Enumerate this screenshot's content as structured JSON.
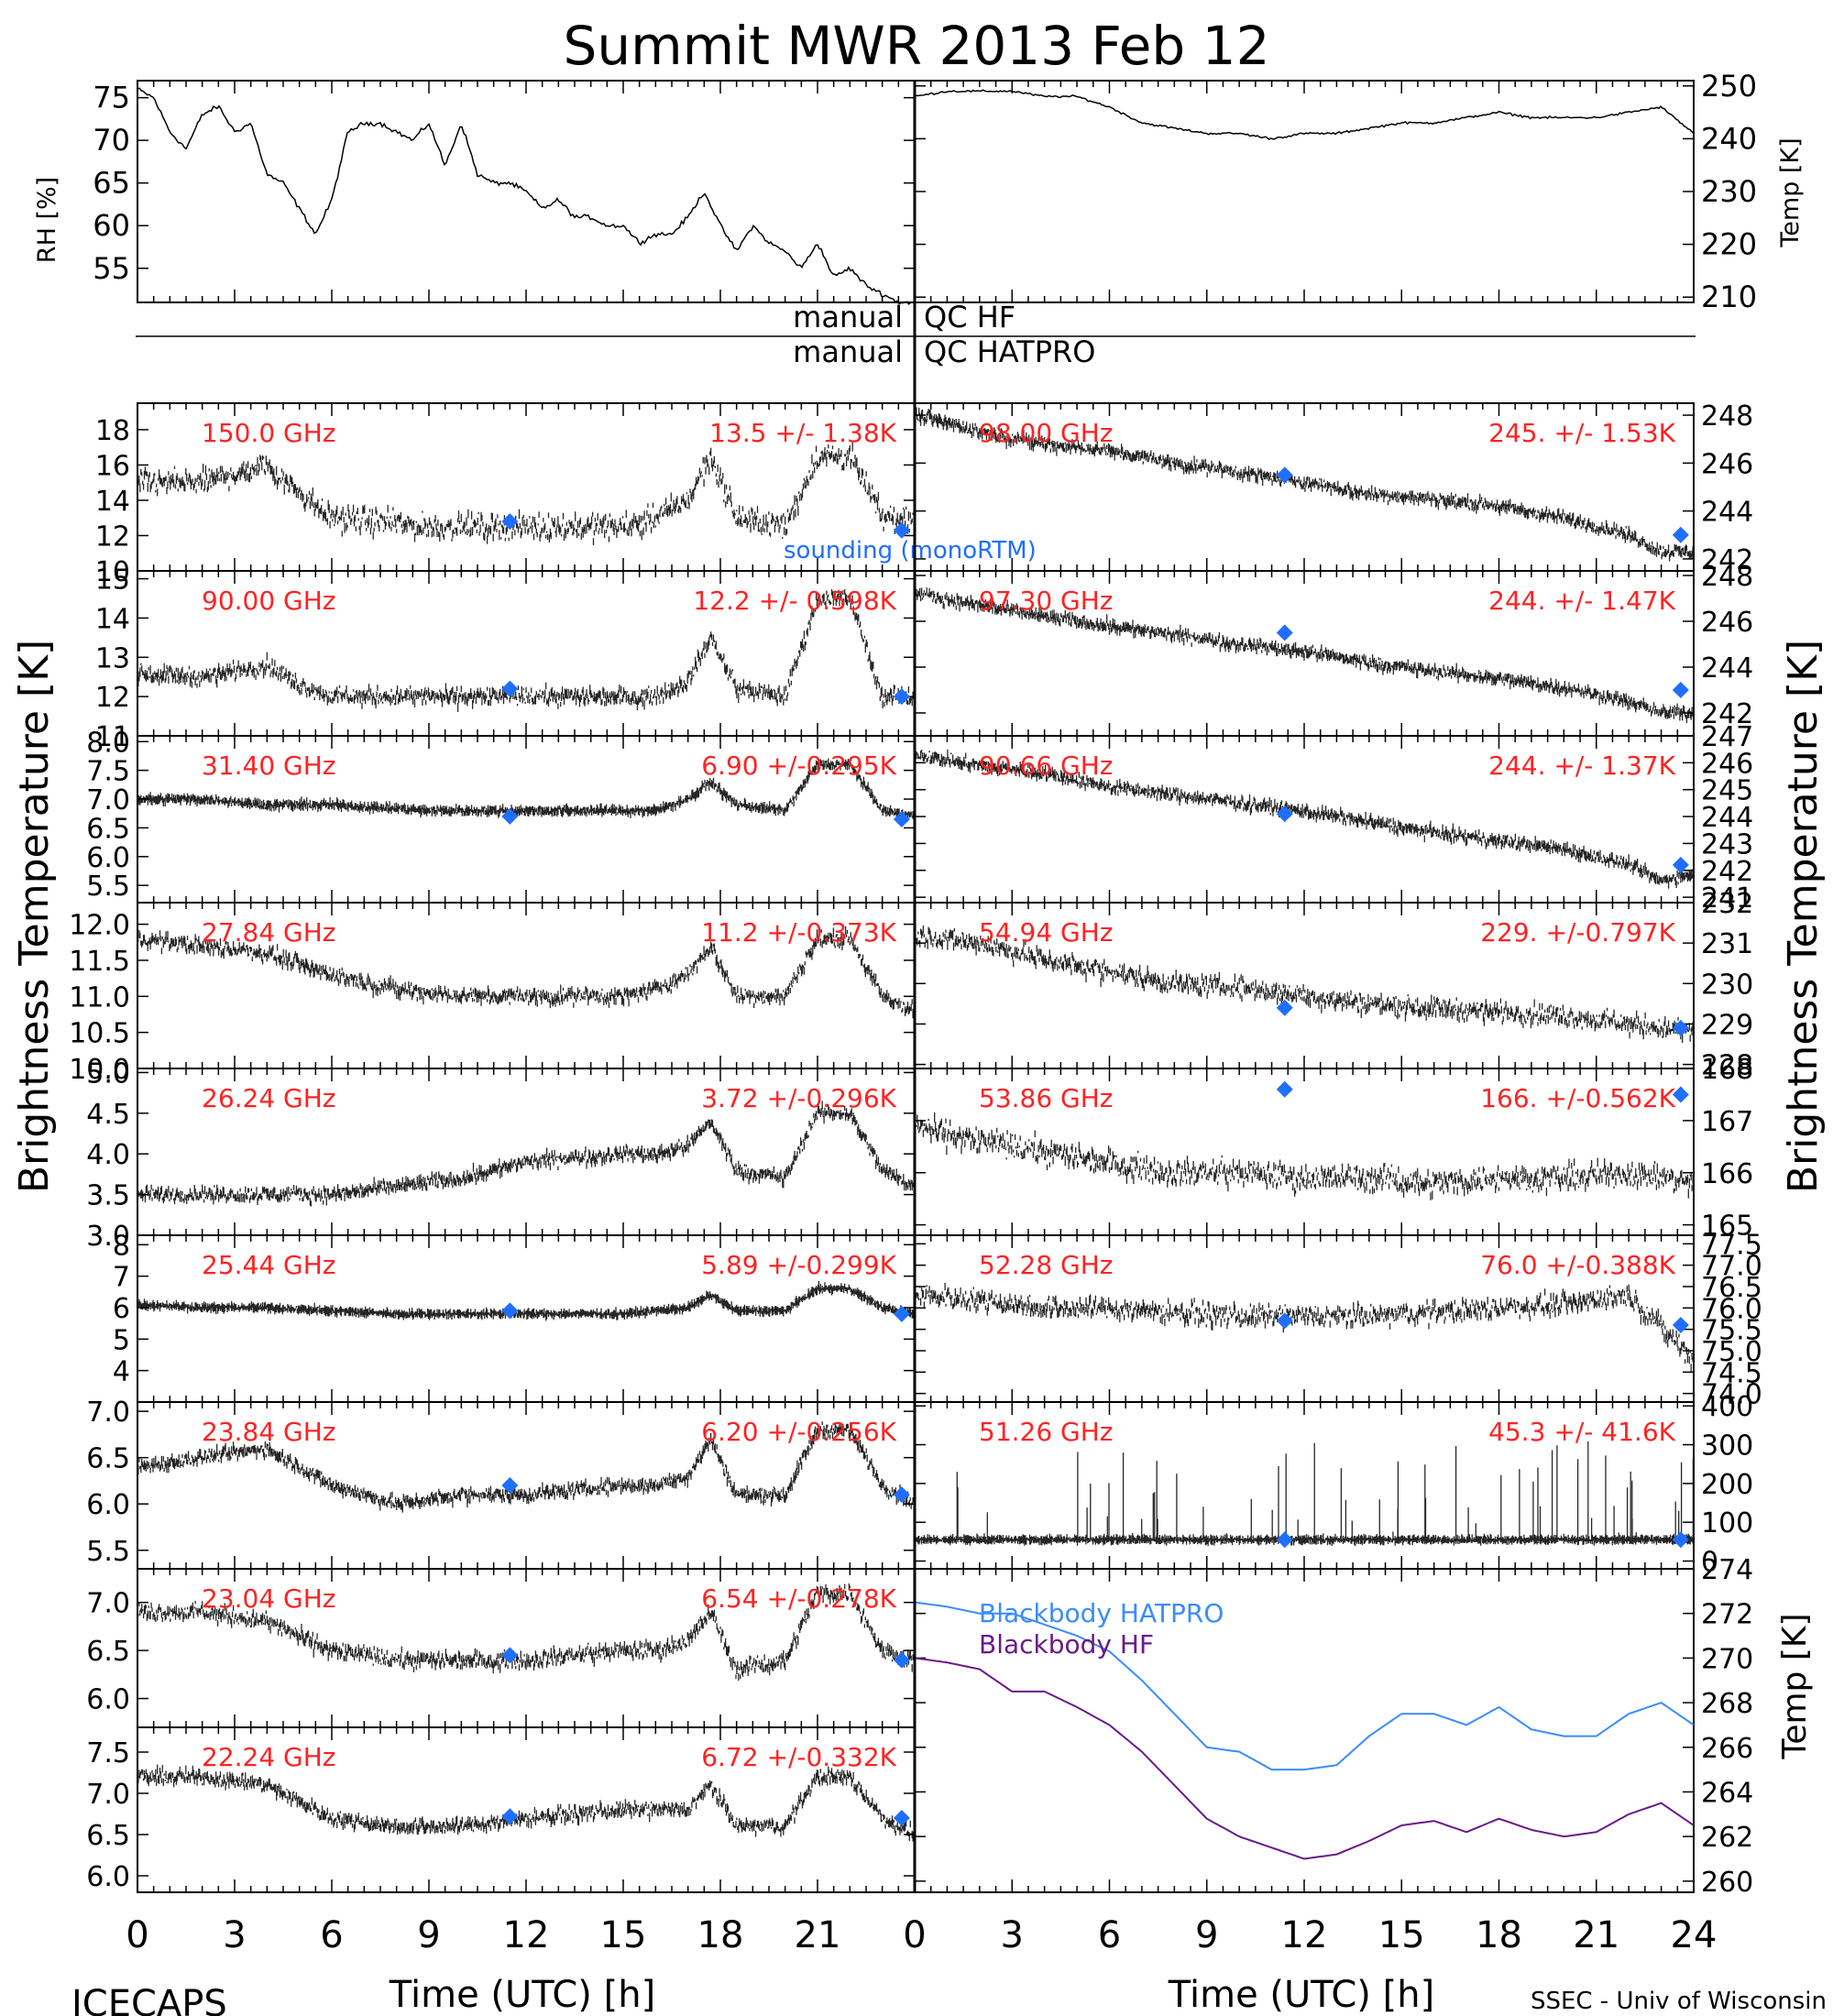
{
  "title": "Summit MWR 2013 Feb 12",
  "footer_left": "ICECAPS",
  "footer_right": "SSEC - Univ of Wisconsin",
  "colors": {
    "text_red": "#ff2222",
    "sounding_blue": "#1f6fff",
    "hatpro_blue": "#3a8cff",
    "hf_purple": "#6a1a8a",
    "ink": "#000000"
  },
  "qc": {
    "label_left_1": "manual",
    "label_right_1": "QC HF",
    "label_left_2": "manual",
    "label_right_2": "QC HATPRO"
  },
  "axes": {
    "time_label": "Time (UTC) [h]",
    "brightness_label": "Brightness Temperature [K]",
    "rh_label": "RH [%]",
    "temp_label": "Temp [K]",
    "x_ticks": [
      "0",
      "3",
      "6",
      "9",
      "12",
      "15",
      "18",
      "21"
    ],
    "x_ticks_right": [
      "0",
      "3",
      "6",
      "9",
      "12",
      "15",
      "18",
      "21",
      "24"
    ]
  },
  "chart_data": [
    {
      "type": "line",
      "id": "rh",
      "x_range": [
        0,
        24
      ],
      "ylim": [
        51,
        77
      ],
      "ylabel": "RH [%]",
      "yticks": [
        55,
        60,
        65,
        70,
        75
      ],
      "x": [
        0,
        0.5,
        1,
        1.5,
        2,
        2.5,
        3,
        3.5,
        4,
        4.5,
        5,
        5.5,
        6,
        6.5,
        7,
        7.5,
        8,
        8.5,
        9,
        9.5,
        10,
        10.5,
        11,
        11.5,
        12,
        12.5,
        13,
        13.5,
        14,
        14.5,
        15,
        15.5,
        16,
        16.5,
        17,
        17.5,
        18,
        18.5,
        19,
        19.5,
        20,
        20.5,
        21,
        21.5,
        22,
        22.5,
        23,
        23.5
      ],
      "y": [
        76,
        75,
        71,
        69,
        73,
        74,
        71,
        72,
        66,
        65,
        62,
        59,
        63,
        71,
        72,
        72,
        71,
        70,
        72,
        67,
        72,
        66,
        65,
        65,
        64,
        62,
        63,
        61,
        61,
        60,
        60,
        58,
        59,
        59,
        61,
        64,
        60,
        57,
        60,
        58,
        57,
        55,
        58,
        54,
        55,
        53,
        52,
        51
      ]
    },
    {
      "type": "line",
      "id": "temp",
      "x_range": [
        0,
        24
      ],
      "ylim": [
        209,
        251
      ],
      "ylabel": "Temp [K]",
      "yticks": [
        210,
        220,
        230,
        240,
        250
      ],
      "x": [
        0,
        1,
        2,
        3,
        4,
        5,
        6,
        7,
        8,
        9,
        10,
        11,
        12,
        13,
        14,
        15,
        16,
        17,
        18,
        19,
        20,
        21,
        22,
        23,
        24
      ],
      "y": [
        248,
        249,
        249,
        249,
        248,
        248,
        246,
        243,
        242,
        241,
        241,
        240,
        241,
        241,
        242,
        243,
        243,
        244,
        245,
        244,
        244,
        244,
        245,
        246,
        241
      ]
    },
    {
      "type": "scatter",
      "id": "ch_150",
      "label": "150.0 GHz",
      "stats": "13.5 +/- 1.38K",
      "ylim": [
        10,
        19.5
      ],
      "yticks": [
        10,
        12,
        14,
        16,
        18
      ],
      "noise": 1.0,
      "x": [
        0,
        2,
        4,
        5,
        6,
        9,
        12,
        15,
        16,
        17,
        17.7,
        18.5,
        20,
        21,
        22,
        23,
        24
      ],
      "y": [
        15,
        15,
        16,
        14.5,
        13,
        12.5,
        12.5,
        12.5,
        13,
        14,
        16.5,
        13,
        12.5,
        16.5,
        16.5,
        13,
        13
      ],
      "sounding": [
        {
          "x": 11.5,
          "y": 12.8
        },
        {
          "x": 23.6,
          "y": 12.3
        }
      ],
      "sounding_label": "sounding (monoRTM)"
    },
    {
      "type": "scatter",
      "id": "ch_98",
      "label": "98.00 GHz",
      "stats": "245. +/- 1.53K",
      "ylim": [
        241.5,
        248.5
      ],
      "yticks": [
        242,
        244,
        246,
        248
      ],
      "noise": 0.35,
      "x": [
        0,
        1,
        2,
        4,
        6,
        8,
        10,
        12,
        14,
        16,
        18,
        20,
        22,
        23,
        24
      ],
      "y": [
        248,
        247.7,
        247.3,
        246.8,
        246.5,
        246,
        245.6,
        245.2,
        244.7,
        244.5,
        244.2,
        243.7,
        243,
        242.3,
        242.3
      ],
      "sounding": [
        {
          "x": 11.4,
          "y": 245.5
        },
        {
          "x": 23.6,
          "y": 243
        }
      ]
    },
    {
      "type": "scatter",
      "id": "ch_90",
      "label": "90.00 GHz",
      "stats": "12.2 +/- 0.598K",
      "ylim": [
        11,
        15.2
      ],
      "yticks": [
        11,
        12,
        13,
        14,
        15
      ],
      "noise": 0.3,
      "x": [
        0,
        2,
        4,
        5,
        6,
        9,
        12,
        15,
        16,
        17,
        17.7,
        18.5,
        20,
        21,
        22,
        23,
        24
      ],
      "y": [
        12.6,
        12.5,
        12.8,
        12.3,
        12,
        12,
        12,
        12,
        12,
        12.4,
        13.5,
        12.2,
        12,
        14.5,
        14.5,
        12,
        12
      ],
      "sounding": [
        {
          "x": 11.5,
          "y": 12.2
        },
        {
          "x": 23.6,
          "y": 12
        }
      ]
    },
    {
      "type": "scatter",
      "id": "ch_97",
      "label": "97.30 GHz",
      "stats": "244. +/- 1.47K",
      "ylim": [
        241,
        248.2
      ],
      "yticks": [
        242,
        244,
        246,
        248
      ],
      "noise": 0.35,
      "x": [
        0,
        2,
        4,
        6,
        8,
        10,
        12,
        14,
        16,
        18,
        20,
        22,
        23,
        24
      ],
      "y": [
        247.2,
        246.7,
        246.2,
        245.8,
        245.4,
        245,
        244.7,
        244.2,
        243.8,
        243.5,
        243.1,
        242.5,
        242,
        242
      ],
      "sounding": [
        {
          "x": 11.4,
          "y": 245.5
        },
        {
          "x": 23.6,
          "y": 243
        }
      ]
    },
    {
      "type": "scatter",
      "id": "ch_31",
      "label": "31.40 GHz",
      "stats": "6.90 +/-0.295K",
      "ylim": [
        5.2,
        8.1
      ],
      "yticks": [
        5.5,
        6.0,
        6.5,
        7.0,
        7.5,
        8.0
      ],
      "noise": 0.08,
      "x": [
        0,
        2,
        4,
        6,
        9,
        12,
        15,
        16,
        17,
        17.7,
        18.5,
        20,
        21,
        22,
        23,
        24
      ],
      "y": [
        7,
        7,
        6.9,
        6.9,
        6.8,
        6.8,
        6.8,
        6.8,
        7,
        7.3,
        6.9,
        6.8,
        7.6,
        7.6,
        6.8,
        6.7
      ],
      "sounding": [
        {
          "x": 11.5,
          "y": 6.7
        },
        {
          "x": 23.6,
          "y": 6.65
        }
      ]
    },
    {
      "type": "scatter",
      "id": "ch_90_66",
      "label": "90.66 GHz",
      "stats": "244. +/- 1.37K",
      "ylim": [
        240.8,
        247
      ],
      "yticks": [
        241,
        242,
        243,
        244,
        245,
        246,
        247
      ],
      "noise": 0.3,
      "x": [
        0,
        2,
        4,
        6,
        8,
        10,
        12,
        14,
        16,
        18,
        20,
        22,
        23,
        24
      ],
      "y": [
        246.3,
        245.9,
        245.6,
        245.1,
        244.8,
        244.5,
        244.2,
        243.8,
        243.4,
        243.1,
        242.8,
        242.2,
        241.6,
        241.9
      ],
      "sounding": [
        {
          "x": 11.4,
          "y": 244.1
        },
        {
          "x": 23.6,
          "y": 242.2
        }
      ]
    },
    {
      "type": "scatter",
      "id": "ch_27",
      "label": "27.84 GHz",
      "stats": "11.2 +/-0.373K",
      "ylim": [
        10,
        12.3
      ],
      "yticks": [
        10.0,
        10.5,
        11.0,
        11.5,
        12.0
      ],
      "noise": 0.15,
      "x": [
        0,
        2,
        4,
        6,
        8,
        10,
        12,
        15,
        16,
        17,
        17.7,
        18.5,
        20,
        21,
        22,
        23,
        24
      ],
      "y": [
        11.8,
        11.7,
        11.6,
        11.3,
        11.1,
        11,
        11,
        11,
        11.1,
        11.3,
        11.7,
        11,
        11,
        11.8,
        11.8,
        11,
        10.8
      ],
      "sounding": []
    },
    {
      "type": "scatter",
      "id": "ch_54",
      "label": "54.94 GHz",
      "stats": "229. +/-0.797K",
      "ylim": [
        227.9,
        232
      ],
      "yticks": [
        228,
        229,
        230,
        231,
        232
      ],
      "noise": 0.35,
      "x": [
        0,
        2,
        4,
        6,
        8,
        10,
        12,
        14,
        16,
        18,
        20,
        22,
        24
      ],
      "y": [
        231.2,
        231,
        230.6,
        230.3,
        230,
        229.9,
        229.7,
        229.5,
        229.4,
        229.3,
        229.2,
        229,
        228.8
      ],
      "sounding": [
        {
          "x": 11.4,
          "y": 229.4
        },
        {
          "x": 23.6,
          "y": 228.9
        }
      ]
    },
    {
      "type": "scatter",
      "id": "ch_26",
      "label": "26.24 GHz",
      "stats": "3.72 +/-0.296K",
      "ylim": [
        3,
        5.05
      ],
      "yticks": [
        3.0,
        3.5,
        4.0,
        4.5,
        5.0
      ],
      "noise": 0.12,
      "x": [
        0,
        2,
        4,
        6,
        8,
        10,
        12,
        15,
        16,
        17,
        17.7,
        18.5,
        20,
        21,
        22,
        23,
        24
      ],
      "y": [
        3.5,
        3.5,
        3.5,
        3.5,
        3.6,
        3.7,
        3.9,
        4,
        4,
        4.1,
        4.4,
        3.8,
        3.7,
        4.5,
        4.5,
        3.8,
        3.6
      ],
      "sounding": []
    },
    {
      "type": "scatter",
      "id": "ch_53",
      "label": "53.86 GHz",
      "stats": "166. +/-0.562K",
      "ylim": [
        164.8,
        168
      ],
      "yticks": [
        165,
        166,
        167,
        168
      ],
      "noise": 0.35,
      "x": [
        0,
        2,
        4,
        6,
        8,
        10,
        12,
        14,
        16,
        18,
        20,
        22,
        24
      ],
      "y": [
        166.9,
        166.6,
        166.4,
        166.2,
        166,
        166,
        165.9,
        165.9,
        165.8,
        165.9,
        165.9,
        166,
        165.8
      ],
      "sounding": [
        {
          "x": 11.4,
          "y": 167.6
        },
        {
          "x": 23.6,
          "y": 167.5
        }
      ]
    },
    {
      "type": "scatter",
      "id": "ch_25",
      "label": "25.44 GHz",
      "stats": "5.89 +/-0.299K",
      "ylim": [
        3,
        8.3
      ],
      "yticks": [
        4,
        5,
        6,
        7,
        8
      ],
      "noise": 0.1,
      "x": [
        0,
        2,
        4,
        6,
        8,
        10,
        12,
        15,
        16,
        17,
        17.7,
        18.5,
        20,
        21,
        22,
        23,
        24
      ],
      "y": [
        6.1,
        6,
        6,
        5.9,
        5.8,
        5.8,
        5.8,
        5.8,
        5.9,
        6,
        6.4,
        5.9,
        5.9,
        6.6,
        6.6,
        6,
        5.8
      ],
      "sounding": [
        {
          "x": 11.5,
          "y": 5.9
        },
        {
          "x": 23.6,
          "y": 5.8
        }
      ]
    },
    {
      "type": "scatter",
      "id": "ch_52",
      "label": "52.28 GHz",
      "stats": "76.0 +/-0.388K",
      "ylim": [
        73.8,
        77.7
      ],
      "yticks": [
        74.0,
        74.5,
        75.0,
        75.5,
        76.0,
        76.5,
        77.0,
        77.5
      ],
      "noise": 0.35,
      "x": [
        0,
        2,
        4,
        6,
        8,
        10,
        12,
        14,
        16,
        18,
        20,
        22,
        24
      ],
      "y": [
        76.3,
        76.2,
        76,
        76,
        75.9,
        75.8,
        75.8,
        75.8,
        75.9,
        76,
        76.1,
        76.3,
        74.8
      ],
      "sounding": [
        {
          "x": 11.4,
          "y": 75.7
        },
        {
          "x": 23.6,
          "y": 75.6
        }
      ]
    },
    {
      "type": "scatter",
      "id": "ch_23_84",
      "label": "23.84 GHz",
      "stats": "6.20 +/-0.256K",
      "ylim": [
        5.3,
        7.1
      ],
      "yticks": [
        5.5,
        6.0,
        6.5,
        7.0
      ],
      "noise": 0.1,
      "x": [
        0,
        2,
        4,
        6,
        8,
        10,
        12,
        15,
        16,
        17,
        17.7,
        18.5,
        20,
        21,
        22,
        23,
        24
      ],
      "y": [
        6.4,
        6.5,
        6.6,
        6.2,
        6,
        6.1,
        6.1,
        6.2,
        6.2,
        6.3,
        6.7,
        6.1,
        6.1,
        6.8,
        6.8,
        6.2,
        6
      ],
      "sounding": [
        {
          "x": 11.5,
          "y": 6.2
        },
        {
          "x": 23.6,
          "y": 6.1
        }
      ]
    },
    {
      "type": "scatter",
      "id": "ch_51",
      "label": "51.26 GHz",
      "stats": "45.3 +/- 41.6K",
      "ylim": [
        -20,
        410
      ],
      "yticks": [
        0,
        100,
        200,
        300,
        400
      ],
      "noise": 6,
      "spikes": true,
      "x": [
        0,
        24
      ],
      "y": [
        55,
        55
      ],
      "sounding": [
        {
          "x": 11.4,
          "y": 55
        },
        {
          "x": 23.6,
          "y": 55
        }
      ]
    },
    {
      "type": "scatter",
      "id": "ch_23_04",
      "label": "23.04 GHz",
      "stats": "6.54 +/-0.278K",
      "ylim": [
        5.7,
        7.35
      ],
      "yticks": [
        6.0,
        6.5,
        7.0
      ],
      "noise": 0.12,
      "x": [
        0,
        2,
        4,
        6,
        8,
        10,
        12,
        15,
        16,
        17,
        17.7,
        18.5,
        20,
        21,
        22,
        23,
        24
      ],
      "y": [
        6.9,
        6.9,
        6.8,
        6.5,
        6.4,
        6.4,
        6.4,
        6.5,
        6.5,
        6.6,
        6.9,
        6.3,
        6.4,
        7.1,
        7.1,
        6.5,
        6.4
      ],
      "sounding": [
        {
          "x": 11.5,
          "y": 6.45
        },
        {
          "x": 23.6,
          "y": 6.4
        }
      ]
    },
    {
      "type": "line",
      "id": "blackbody",
      "ylim": [
        259.5,
        274
      ],
      "yticks": [
        260,
        262,
        264,
        266,
        268,
        270,
        272,
        274
      ],
      "ylabel": "Temp [K]",
      "series": [
        {
          "name": "Blackbody HATPRO",
          "x": [
            0,
            1,
            2,
            3,
            4,
            5,
            6,
            7,
            8,
            9,
            10,
            11,
            12,
            13,
            14,
            15,
            16,
            17,
            18,
            19,
            20,
            21,
            22,
            23,
            24
          ],
          "y": [
            272.5,
            272.3,
            272,
            272,
            271.5,
            271,
            270.3,
            269,
            267.5,
            266,
            265.8,
            265,
            265,
            265.2,
            266.5,
            267.5,
            267.5,
            267,
            267.8,
            266.8,
            266.5,
            266.5,
            267.5,
            268,
            267
          ]
        },
        {
          "name": "Blackbody HF",
          "x": [
            0,
            1,
            2,
            3,
            4,
            5,
            6,
            7,
            8,
            9,
            10,
            11,
            12,
            13,
            14,
            15,
            16,
            17,
            18,
            19,
            20,
            21,
            22,
            23,
            24
          ],
          "y": [
            270,
            269.8,
            269.5,
            268.5,
            268.5,
            267.8,
            267,
            265.8,
            264.3,
            262.8,
            262,
            261.5,
            261,
            261.2,
            261.8,
            262.5,
            262.7,
            262.2,
            262.8,
            262.3,
            262,
            262.2,
            263,
            263.5,
            262.5
          ]
        }
      ]
    },
    {
      "type": "scatter",
      "id": "ch_22",
      "label": "22.24 GHz",
      "stats": "6.72 +/-0.332K",
      "ylim": [
        5.8,
        7.8
      ],
      "yticks": [
        6.0,
        6.5,
        7.0,
        7.5
      ],
      "noise": 0.12,
      "x": [
        0,
        2,
        4,
        6,
        8,
        10,
        12,
        15,
        16,
        17,
        17.7,
        18.5,
        20,
        21,
        22,
        23,
        24
      ],
      "y": [
        7.2,
        7.2,
        7.1,
        6.7,
        6.6,
        6.6,
        6.7,
        6.8,
        6.8,
        6.8,
        7.1,
        6.6,
        6.6,
        7.2,
        7.2,
        6.7,
        6.5
      ],
      "sounding": [
        {
          "x": 11.5,
          "y": 6.72
        },
        {
          "x": 23.6,
          "y": 6.7
        }
      ]
    }
  ]
}
